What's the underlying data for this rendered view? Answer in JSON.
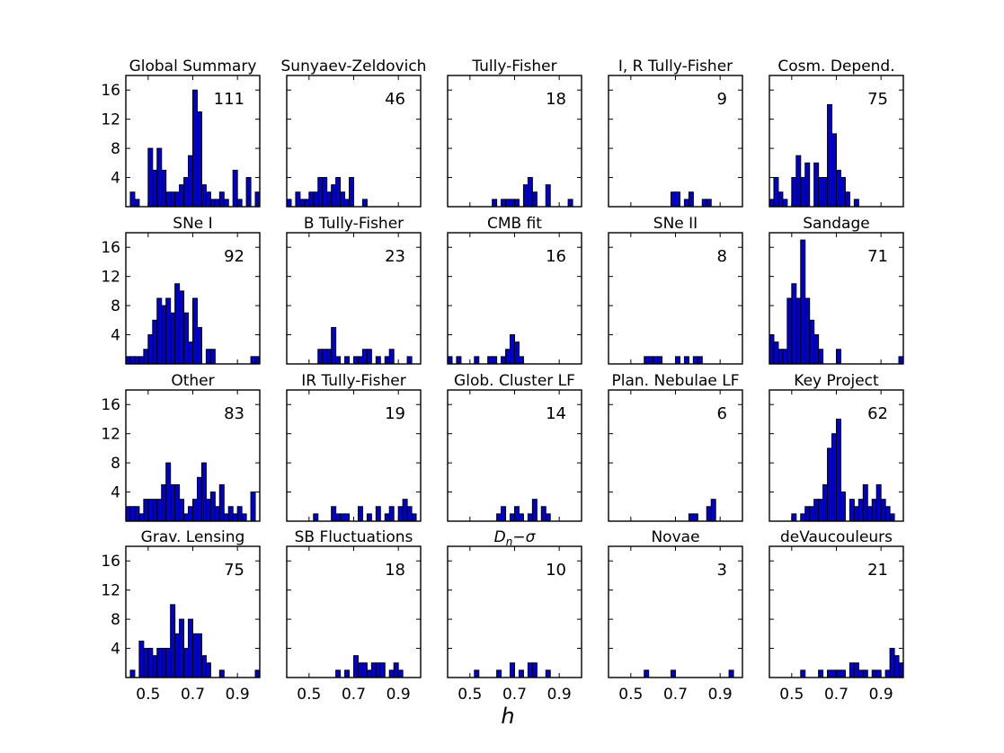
{
  "figure": {
    "x_axis_label": "h",
    "x_tick_labels": [
      "0.5",
      "0.7",
      "0.9"
    ],
    "y_tick_labels": [
      "4",
      "8",
      "12",
      "16"
    ]
  },
  "chart_data": [
    {
      "type": "bar",
      "title": "Global Summary",
      "count": "111",
      "bins": [
        [
          0.42,
          2
        ],
        [
          0.44,
          1
        ],
        [
          0.5,
          8
        ],
        [
          0.52,
          5
        ],
        [
          0.54,
          8
        ],
        [
          0.56,
          5
        ],
        [
          0.58,
          2
        ],
        [
          0.6,
          2
        ],
        [
          0.62,
          2
        ],
        [
          0.64,
          3
        ],
        [
          0.66,
          4
        ],
        [
          0.68,
          7
        ],
        [
          0.7,
          16
        ],
        [
          0.72,
          13
        ],
        [
          0.74,
          3
        ],
        [
          0.76,
          2
        ],
        [
          0.78,
          1
        ],
        [
          0.8,
          1
        ],
        [
          0.82,
          2
        ],
        [
          0.84,
          1
        ],
        [
          0.88,
          5
        ],
        [
          0.9,
          1
        ],
        [
          0.94,
          4
        ],
        [
          0.98,
          2
        ]
      ]
    },
    {
      "type": "bar",
      "title": "Sunyaev-Zeldovich",
      "count": "46",
      "bins": [
        [
          0.4,
          1
        ],
        [
          0.44,
          2
        ],
        [
          0.46,
          1
        ],
        [
          0.48,
          1
        ],
        [
          0.5,
          2
        ],
        [
          0.52,
          2
        ],
        [
          0.54,
          4
        ],
        [
          0.56,
          4
        ],
        [
          0.58,
          2
        ],
        [
          0.6,
          3
        ],
        [
          0.62,
          4
        ],
        [
          0.64,
          2
        ],
        [
          0.66,
          1
        ],
        [
          0.68,
          4
        ],
        [
          0.74,
          1
        ]
      ]
    },
    {
      "type": "bar",
      "title": "Tully-Fisher",
      "count": "18",
      "bins": [
        [
          0.6,
          1
        ],
        [
          0.64,
          1
        ],
        [
          0.66,
          1
        ],
        [
          0.68,
          1
        ],
        [
          0.7,
          1
        ],
        [
          0.74,
          3
        ],
        [
          0.76,
          4
        ],
        [
          0.78,
          2
        ],
        [
          0.84,
          3
        ],
        [
          0.94,
          1
        ]
      ]
    },
    {
      "type": "bar",
      "title": "I, R Tully-Fisher",
      "count": "9",
      "bins": [
        [
          0.68,
          2
        ],
        [
          0.7,
          2
        ],
        [
          0.74,
          1
        ],
        [
          0.76,
          2
        ],
        [
          0.82,
          1
        ],
        [
          0.84,
          1
        ]
      ]
    },
    {
      "type": "bar",
      "title": "Cosm. Depend.",
      "count": "75",
      "bins": [
        [
          0.4,
          1
        ],
        [
          0.42,
          4
        ],
        [
          0.44,
          2
        ],
        [
          0.46,
          1
        ],
        [
          0.5,
          4
        ],
        [
          0.52,
          7
        ],
        [
          0.54,
          4
        ],
        [
          0.56,
          6
        ],
        [
          0.6,
          6
        ],
        [
          0.62,
          4
        ],
        [
          0.64,
          4
        ],
        [
          0.66,
          14
        ],
        [
          0.68,
          10
        ],
        [
          0.7,
          5
        ],
        [
          0.72,
          4
        ],
        [
          0.74,
          2
        ],
        [
          0.78,
          1
        ]
      ]
    },
    {
      "type": "bar",
      "title": "SNe I",
      "count": "92",
      "bins": [
        [
          0.4,
          1
        ],
        [
          0.42,
          1
        ],
        [
          0.44,
          1
        ],
        [
          0.46,
          1
        ],
        [
          0.48,
          2
        ],
        [
          0.5,
          4
        ],
        [
          0.52,
          6
        ],
        [
          0.54,
          9
        ],
        [
          0.56,
          8
        ],
        [
          0.58,
          9
        ],
        [
          0.6,
          7
        ],
        [
          0.62,
          11
        ],
        [
          0.64,
          10
        ],
        [
          0.66,
          7
        ],
        [
          0.68,
          3
        ],
        [
          0.7,
          9
        ],
        [
          0.72,
          5
        ],
        [
          0.76,
          2
        ],
        [
          0.78,
          2
        ],
        [
          0.96,
          1
        ],
        [
          0.98,
          1
        ]
      ]
    },
    {
      "type": "bar",
      "title": "B Tully-Fisher",
      "count": "23",
      "bins": [
        [
          0.54,
          2
        ],
        [
          0.56,
          2
        ],
        [
          0.58,
          2
        ],
        [
          0.6,
          5
        ],
        [
          0.62,
          1
        ],
        [
          0.66,
          1
        ],
        [
          0.7,
          1
        ],
        [
          0.72,
          1
        ],
        [
          0.74,
          2
        ],
        [
          0.76,
          2
        ],
        [
          0.8,
          1
        ],
        [
          0.84,
          1
        ],
        [
          0.86,
          2
        ],
        [
          0.94,
          1
        ]
      ]
    },
    {
      "type": "bar",
      "title": "CMB fit",
      "count": "16",
      "bins": [
        [
          0.4,
          1
        ],
        [
          0.44,
          1
        ],
        [
          0.52,
          1
        ],
        [
          0.58,
          1
        ],
        [
          0.6,
          1
        ],
        [
          0.64,
          1
        ],
        [
          0.66,
          2
        ],
        [
          0.68,
          4
        ],
        [
          0.7,
          3
        ],
        [
          0.72,
          1
        ]
      ]
    },
    {
      "type": "bar",
      "title": "SNe II",
      "count": "8",
      "bins": [
        [
          0.56,
          1
        ],
        [
          0.58,
          1
        ],
        [
          0.6,
          1
        ],
        [
          0.62,
          1
        ],
        [
          0.7,
          1
        ],
        [
          0.74,
          1
        ],
        [
          0.78,
          1
        ],
        [
          0.8,
          1
        ]
      ]
    },
    {
      "type": "bar",
      "title": "Sandage",
      "count": "71",
      "bins": [
        [
          0.4,
          4
        ],
        [
          0.42,
          3
        ],
        [
          0.44,
          2
        ],
        [
          0.46,
          2
        ],
        [
          0.48,
          9
        ],
        [
          0.5,
          11
        ],
        [
          0.52,
          9
        ],
        [
          0.54,
          17
        ],
        [
          0.56,
          9
        ],
        [
          0.58,
          6
        ],
        [
          0.6,
          4
        ],
        [
          0.62,
          2
        ],
        [
          0.7,
          2
        ],
        [
          0.98,
          1
        ]
      ]
    },
    {
      "type": "bar",
      "title": "Other",
      "count": "83",
      "bins": [
        [
          0.4,
          2
        ],
        [
          0.42,
          2
        ],
        [
          0.44,
          2
        ],
        [
          0.46,
          1
        ],
        [
          0.48,
          3
        ],
        [
          0.5,
          3
        ],
        [
          0.52,
          3
        ],
        [
          0.54,
          3
        ],
        [
          0.56,
          5
        ],
        [
          0.58,
          8
        ],
        [
          0.6,
          5
        ],
        [
          0.62,
          5
        ],
        [
          0.64,
          3
        ],
        [
          0.66,
          1
        ],
        [
          0.68,
          2
        ],
        [
          0.7,
          3
        ],
        [
          0.72,
          6
        ],
        [
          0.74,
          8
        ],
        [
          0.76,
          3
        ],
        [
          0.78,
          4
        ],
        [
          0.8,
          2
        ],
        [
          0.82,
          5
        ],
        [
          0.84,
          1
        ],
        [
          0.86,
          2
        ],
        [
          0.88,
          1
        ],
        [
          0.9,
          2
        ],
        [
          0.92,
          1
        ],
        [
          0.96,
          4
        ]
      ]
    },
    {
      "type": "bar",
      "title": "IR Tully-Fisher",
      "count": "19",
      "bins": [
        [
          0.52,
          1
        ],
        [
          0.6,
          2
        ],
        [
          0.62,
          1
        ],
        [
          0.64,
          1
        ],
        [
          0.66,
          1
        ],
        [
          0.72,
          2
        ],
        [
          0.76,
          1
        ],
        [
          0.8,
          2
        ],
        [
          0.84,
          1
        ],
        [
          0.86,
          2
        ],
        [
          0.9,
          2
        ],
        [
          0.92,
          3
        ],
        [
          0.94,
          2
        ],
        [
          0.96,
          1
        ]
      ]
    },
    {
      "type": "bar",
      "title": "Glob. Cluster LF",
      "count": "14",
      "bins": [
        [
          0.62,
          1
        ],
        [
          0.64,
          2
        ],
        [
          0.68,
          1
        ],
        [
          0.7,
          2
        ],
        [
          0.72,
          1
        ],
        [
          0.76,
          1
        ],
        [
          0.78,
          3
        ],
        [
          0.82,
          2
        ],
        [
          0.84,
          1
        ]
      ]
    },
    {
      "type": "bar",
      "title": "Plan. Nebulae LF",
      "count": "6",
      "bins": [
        [
          0.76,
          1
        ],
        [
          0.78,
          1
        ],
        [
          0.84,
          2
        ],
        [
          0.86,
          3
        ]
      ]
    },
    {
      "type": "bar",
      "title": "Key Project",
      "count": "62",
      "bins": [
        [
          0.5,
          1
        ],
        [
          0.54,
          1
        ],
        [
          0.56,
          2
        ],
        [
          0.58,
          2
        ],
        [
          0.6,
          3
        ],
        [
          0.62,
          3
        ],
        [
          0.64,
          5
        ],
        [
          0.66,
          10
        ],
        [
          0.68,
          12
        ],
        [
          0.7,
          14
        ],
        [
          0.72,
          4
        ],
        [
          0.76,
          3
        ],
        [
          0.78,
          2
        ],
        [
          0.8,
          3
        ],
        [
          0.82,
          5
        ],
        [
          0.84,
          2
        ],
        [
          0.86,
          3
        ],
        [
          0.88,
          5
        ],
        [
          0.9,
          3
        ],
        [
          0.92,
          2
        ],
        [
          0.94,
          1
        ]
      ]
    },
    {
      "type": "bar",
      "title": "Grav. Lensing",
      "count": "75",
      "bins": [
        [
          0.42,
          1
        ],
        [
          0.46,
          5
        ],
        [
          0.48,
          4
        ],
        [
          0.5,
          4
        ],
        [
          0.52,
          3
        ],
        [
          0.54,
          4
        ],
        [
          0.56,
          4
        ],
        [
          0.58,
          4
        ],
        [
          0.6,
          10
        ],
        [
          0.62,
          6
        ],
        [
          0.64,
          8
        ],
        [
          0.66,
          4
        ],
        [
          0.68,
          8
        ],
        [
          0.7,
          6
        ],
        [
          0.72,
          6
        ],
        [
          0.74,
          3
        ],
        [
          0.76,
          2
        ],
        [
          0.82,
          1
        ],
        [
          0.98,
          1
        ]
      ]
    },
    {
      "type": "bar",
      "title": "SB Fluctuations",
      "count": "18",
      "bins": [
        [
          0.62,
          1
        ],
        [
          0.66,
          1
        ],
        [
          0.7,
          3
        ],
        [
          0.72,
          2
        ],
        [
          0.74,
          2
        ],
        [
          0.76,
          1
        ],
        [
          0.78,
          2
        ],
        [
          0.8,
          2
        ],
        [
          0.82,
          2
        ],
        [
          0.86,
          1
        ],
        [
          0.88,
          2
        ],
        [
          0.9,
          1
        ]
      ]
    },
    {
      "type": "bar",
      "title": "D_n − σ",
      "count": "10",
      "bins": [
        [
          0.52,
          1
        ],
        [
          0.62,
          1
        ],
        [
          0.68,
          2
        ],
        [
          0.72,
          1
        ],
        [
          0.76,
          2
        ],
        [
          0.78,
          2
        ],
        [
          0.84,
          1
        ]
      ]
    },
    {
      "type": "bar",
      "title": "Novae",
      "count": "3",
      "bins": [
        [
          0.56,
          1
        ],
        [
          0.68,
          1
        ],
        [
          0.94,
          1
        ]
      ]
    },
    {
      "type": "bar",
      "title": "deVaucouleurs",
      "count": "21",
      "bins": [
        [
          0.54,
          1
        ],
        [
          0.62,
          1
        ],
        [
          0.66,
          1
        ],
        [
          0.68,
          1
        ],
        [
          0.7,
          1
        ],
        [
          0.72,
          1
        ],
        [
          0.76,
          2
        ],
        [
          0.78,
          2
        ],
        [
          0.8,
          1
        ],
        [
          0.82,
          1
        ],
        [
          0.86,
          1
        ],
        [
          0.88,
          1
        ],
        [
          0.92,
          1
        ],
        [
          0.94,
          4
        ],
        [
          0.96,
          3
        ],
        [
          0.98,
          2
        ]
      ]
    }
  ]
}
